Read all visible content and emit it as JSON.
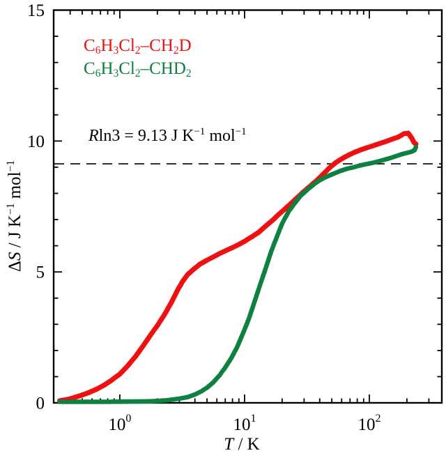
{
  "figure": {
    "background": "#ffffff"
  },
  "legend": {
    "items": [
      {
        "id": "ch2d",
        "label_rich": "C_{6}H_{3}Cl_{2}–CH_{2}D",
        "color": "#ee1111"
      },
      {
        "id": "chd2",
        "label_rich": "C_{6}H_{3}Cl_{2}–CHD_{2}",
        "color": "#0e8040"
      }
    ]
  },
  "annotation": {
    "text_rich": "*R*ln3 = 9.13 J K^{−1} mol^{−1}"
  },
  "chart_data": {
    "type": "scatter",
    "xscale": "log",
    "grid": false,
    "xlabel_rich": "*T* / K",
    "ylabel_rich": "Δ*S* / J K^{−1} mol^{−1}",
    "xlim": [
      0.295,
      381
    ],
    "ylim": [
      0,
      15
    ],
    "xticks": [
      {
        "value": 1,
        "base": "10",
        "exp": "0"
      },
      {
        "value": 10,
        "base": "10",
        "exp": "1"
      },
      {
        "value": 100,
        "base": "10",
        "exp": "2"
      }
    ],
    "xminor": [
      0.4,
      0.5,
      0.6,
      0.7,
      0.8,
      0.9,
      2,
      3,
      4,
      5,
      6,
      7,
      8,
      9,
      20,
      30,
      40,
      50,
      60,
      70,
      80,
      90,
      200,
      300
    ],
    "yticks": [
      {
        "value": 0,
        "label": "0"
      },
      {
        "value": 5,
        "label": "5"
      },
      {
        "value": 10,
        "label": "10"
      },
      {
        "value": 15,
        "label": "15"
      }
    ],
    "yminor": [
      1,
      2,
      3,
      4,
      6,
      7,
      8,
      9,
      11,
      12,
      13,
      14
    ],
    "reference_line": {
      "y": 9.13,
      "style": "dashed",
      "color": "#000000",
      "label_rich": "*R*ln3 = 9.13 J K^{−1} mol^{−1}"
    },
    "series": [
      {
        "name": "C6H3Cl2-CH2D",
        "color": "#ee1111",
        "marker": "circle",
        "marker_radius": 3.7,
        "points": [
          [
            0.33,
            0.08
          ],
          [
            0.38,
            0.13
          ],
          [
            0.43,
            0.2
          ],
          [
            0.5,
            0.3
          ],
          [
            0.57,
            0.4
          ],
          [
            0.65,
            0.52
          ],
          [
            0.75,
            0.68
          ],
          [
            0.85,
            0.85
          ],
          [
            1.0,
            1.1
          ],
          [
            1.15,
            1.4
          ],
          [
            1.35,
            1.8
          ],
          [
            1.55,
            2.2
          ],
          [
            1.8,
            2.65
          ],
          [
            2.0,
            2.95
          ],
          [
            2.3,
            3.4
          ],
          [
            2.6,
            3.85
          ],
          [
            2.9,
            4.3
          ],
          [
            3.2,
            4.65
          ],
          [
            3.5,
            4.9
          ],
          [
            3.9,
            5.1
          ],
          [
            4.4,
            5.3
          ],
          [
            5.0,
            5.45
          ],
          [
            5.6,
            5.57
          ],
          [
            6.3,
            5.7
          ],
          [
            7.1,
            5.82
          ],
          [
            8.0,
            5.93
          ],
          [
            9.0,
            6.05
          ],
          [
            10,
            6.17
          ],
          [
            11.5,
            6.35
          ],
          [
            13,
            6.52
          ],
          [
            15,
            6.78
          ],
          [
            17,
            7.0
          ],
          [
            19,
            7.22
          ],
          [
            21,
            7.4
          ],
          [
            24,
            7.65
          ],
          [
            27,
            7.88
          ],
          [
            30,
            8.08
          ],
          [
            34,
            8.3
          ],
          [
            38,
            8.5
          ],
          [
            43,
            8.75
          ],
          [
            48,
            8.98
          ],
          [
            54,
            9.18
          ],
          [
            60,
            9.32
          ],
          [
            68,
            9.46
          ],
          [
            76,
            9.57
          ],
          [
            85,
            9.66
          ],
          [
            95,
            9.74
          ],
          [
            107,
            9.82
          ],
          [
            120,
            9.9
          ],
          [
            135,
            9.98
          ],
          [
            152,
            10.07
          ],
          [
            170,
            10.15
          ],
          [
            190,
            10.28
          ],
          [
            205,
            10.3
          ],
          [
            218,
            10.12
          ],
          [
            228,
            9.95
          ],
          [
            236,
            9.88
          ]
        ]
      },
      {
        "name": "C6H3Cl2-CHD2",
        "color": "#0e8040",
        "marker": "circle",
        "marker_radius": 3.4,
        "points": [
          [
            0.33,
            0.04
          ],
          [
            0.5,
            0.04
          ],
          [
            0.8,
            0.04
          ],
          [
            1.2,
            0.05
          ],
          [
            1.8,
            0.06
          ],
          [
            2.4,
            0.1
          ],
          [
            3.0,
            0.16
          ],
          [
            3.5,
            0.22
          ],
          [
            4.0,
            0.32
          ],
          [
            4.5,
            0.44
          ],
          [
            5.0,
            0.58
          ],
          [
            5.6,
            0.78
          ],
          [
            6.3,
            1.05
          ],
          [
            7.0,
            1.35
          ],
          [
            7.8,
            1.7
          ],
          [
            8.7,
            2.12
          ],
          [
            9.7,
            2.65
          ],
          [
            10.8,
            3.2
          ],
          [
            12,
            3.85
          ],
          [
            13.3,
            4.5
          ],
          [
            14.8,
            5.15
          ],
          [
            16.4,
            5.8
          ],
          [
            18,
            6.3
          ],
          [
            20,
            6.85
          ],
          [
            22.5,
            7.3
          ],
          [
            25,
            7.6
          ],
          [
            28,
            7.9
          ],
          [
            32,
            8.15
          ],
          [
            36,
            8.35
          ],
          [
            40,
            8.5
          ],
          [
            45,
            8.63
          ],
          [
            51,
            8.74
          ],
          [
            58,
            8.85
          ],
          [
            66,
            8.94
          ],
          [
            75,
            9.0
          ],
          [
            85,
            9.07
          ],
          [
            95,
            9.12
          ],
          [
            107,
            9.17
          ],
          [
            120,
            9.23
          ],
          [
            135,
            9.3
          ],
          [
            152,
            9.37
          ],
          [
            170,
            9.45
          ],
          [
            190,
            9.52
          ],
          [
            205,
            9.56
          ],
          [
            220,
            9.6
          ],
          [
            230,
            9.65
          ],
          [
            236,
            9.77
          ]
        ]
      }
    ]
  }
}
